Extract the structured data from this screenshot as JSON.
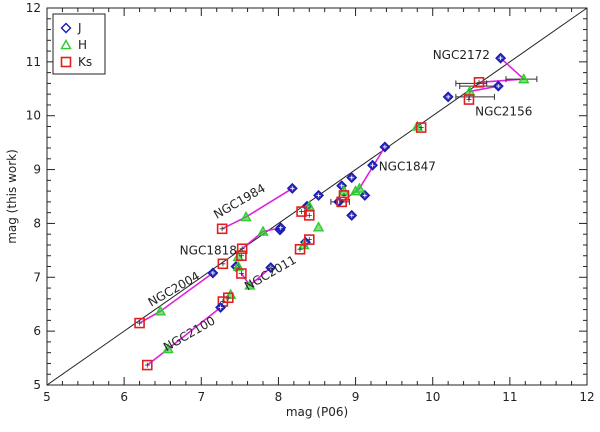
{
  "chart_data": {
    "type": "scatter",
    "xlabel": "mag (P06)",
    "ylabel": "mag (this work)",
    "xlim": [
      5,
      12
    ],
    "ylim": [
      5,
      12
    ],
    "xticks": [
      "5",
      "6",
      "7",
      "8",
      "9",
      "10",
      "11",
      "12"
    ],
    "yticks": [
      "5",
      "6",
      "7",
      "8",
      "9",
      "10",
      "11",
      "12"
    ],
    "identity_line": true,
    "colors": {
      "J": "#1a1ab3",
      "H": "#2ecc2e",
      "Ks": "#e02020",
      "link": "#e020e0",
      "frame": "#222222",
      "errbar": "#333333"
    },
    "legend": {
      "position": "top-left",
      "entries": [
        {
          "label": "J",
          "marker": "diamond",
          "color": "#1a1ab3"
        },
        {
          "label": "H",
          "marker": "triangle",
          "color": "#2ecc2e"
        },
        {
          "label": "Ks",
          "marker": "square",
          "color": "#e02020"
        }
      ]
    },
    "clusters": [
      {
        "name": "NGC2172",
        "label_at": [
          10.0,
          11.05
        ],
        "J": [
          10.88,
          11.07
        ],
        "H": [
          11.18,
          10.68
        ],
        "Ks": [
          10.6,
          10.62
        ]
      },
      {
        "name": "NGC2156",
        "label_at": [
          10.55,
          10.0
        ],
        "J": [
          10.85,
          10.55
        ],
        "H": [
          10.48,
          10.45
        ],
        "Ks": [
          10.47,
          10.3
        ]
      },
      {
        "name": "NGC1847",
        "label_at": [
          9.3,
          8.98
        ],
        "J": [
          9.38,
          9.42
        ],
        "H": [
          9.05,
          8.65
        ],
        "Ks": [
          8.82,
          8.4
        ]
      },
      {
        "name": "NGC1984",
        "label_at": [
          7.2,
          8.08
        ],
        "J": [
          8.18,
          8.65
        ],
        "H": [
          7.58,
          8.12
        ],
        "Ks": [
          7.27,
          7.9
        ]
      },
      {
        "name": "NGC1818",
        "label_at": [
          6.72,
          7.42
        ],
        "J": [
          8.03,
          7.92
        ],
        "H": [
          7.8,
          7.85
        ],
        "Ks": [
          7.53,
          7.53
        ]
      },
      {
        "name": "NGC2004",
        "label_at": [
          6.35,
          6.45
        ],
        "J": [
          7.15,
          7.08
        ],
        "H": [
          6.47,
          6.37
        ],
        "Ks": [
          6.2,
          6.15
        ]
      },
      {
        "name": "NGC2011",
        "label_at": [
          7.6,
          6.75
        ],
        "J": [
          7.9,
          7.18
        ],
        "H": [
          7.63,
          6.85
        ],
        "Ks": [
          7.52,
          7.07
        ]
      },
      {
        "name": "NGC2100",
        "label_at": [
          6.55,
          5.62
        ],
        "J": [
          7.25,
          6.44
        ],
        "H": [
          6.57,
          5.67
        ],
        "Ks": [
          6.3,
          5.37
        ]
      }
    ],
    "extra_points": {
      "J": [
        [
          8.95,
          8.85
        ],
        [
          8.82,
          8.7
        ],
        [
          9.12,
          8.52
        ],
        [
          8.95,
          8.15
        ],
        [
          8.52,
          8.52
        ],
        [
          9.22,
          9.08
        ],
        [
          10.2,
          10.35
        ],
        [
          8.35,
          7.65
        ],
        [
          8.78,
          8.4
        ],
        [
          8.37,
          8.32
        ],
        [
          8.02,
          7.88
        ],
        [
          7.45,
          7.2
        ]
      ],
      "H": [
        [
          9.8,
          9.8
        ],
        [
          8.52,
          7.93
        ],
        [
          8.4,
          8.32
        ],
        [
          9.0,
          8.6
        ],
        [
          7.48,
          7.38
        ],
        [
          7.38,
          6.68
        ],
        [
          7.48,
          7.2
        ],
        [
          8.33,
          7.6
        ],
        [
          8.85,
          8.6
        ]
      ],
      "Ks": [
        [
          9.85,
          9.78
        ],
        [
          8.4,
          7.7
        ],
        [
          8.3,
          8.22
        ],
        [
          8.4,
          8.15
        ],
        [
          8.85,
          8.52
        ],
        [
          7.28,
          7.25
        ],
        [
          7.52,
          7.4
        ],
        [
          7.35,
          6.62
        ],
        [
          7.28,
          6.55
        ],
        [
          8.28,
          7.52
        ]
      ]
    },
    "error_bars": [
      {
        "x": 10.5,
        "y": 10.6,
        "xerr": 0.2
      },
      {
        "x": 10.6,
        "y": 10.55,
        "xerr": 0.25
      },
      {
        "x": 11.15,
        "y": 10.68,
        "xerr": 0.2
      },
      {
        "x": 10.55,
        "y": 10.35,
        "xerr": 0.25
      },
      {
        "x": 8.8,
        "y": 8.4,
        "xerr": 0.12
      }
    ]
  }
}
